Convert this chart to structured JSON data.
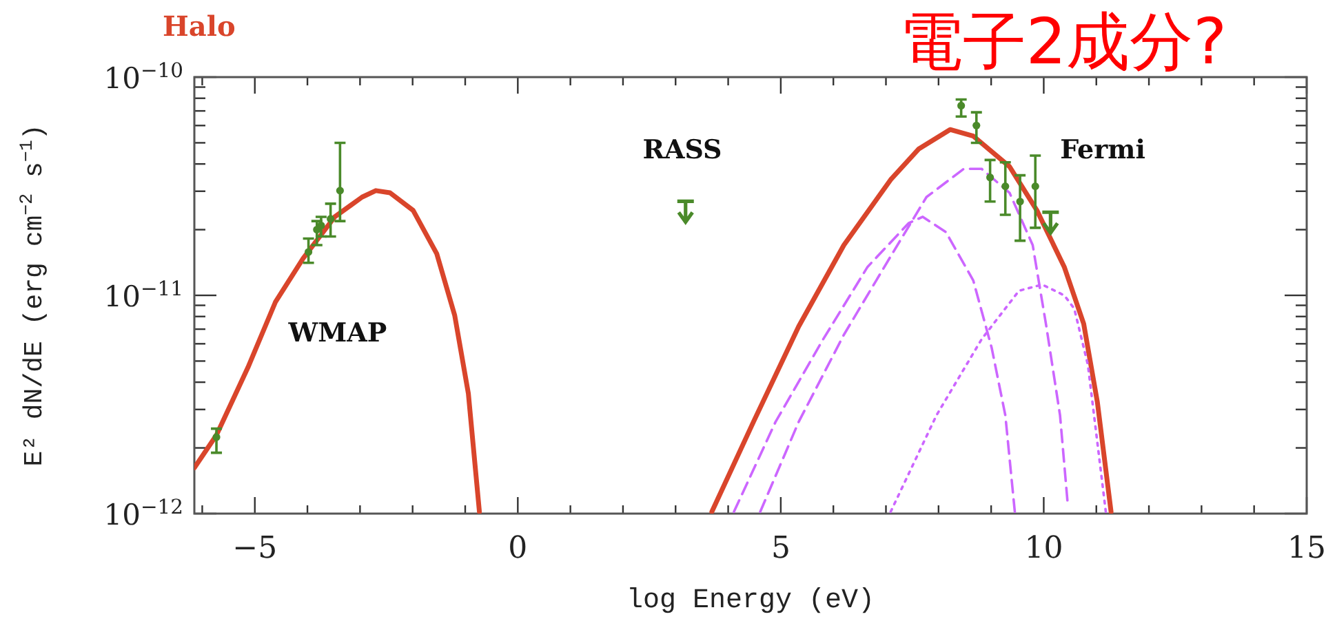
{
  "chart_data": {
    "type": "line",
    "title": "Halo",
    "xlabel": "log Energy (eV)",
    "ylabel": "E² dN/dE (erg cm$^{−2}$ s$^{−1}$)",
    "log": "y",
    "grid": false,
    "xlim": [
      -6.15,
      15
    ],
    "xticks": [
      -5,
      0,
      5,
      10,
      15
    ],
    "ylim": [
      1e-12,
      1e-10
    ],
    "yticks": [
      {
        "value": 1e-12,
        "label": "10$^{−12}$"
      },
      {
        "value": 1e-11,
        "label": "10$^{−11}$"
      },
      {
        "value": 1e-10,
        "label": "10$^{−10}$"
      }
    ],
    "series": [
      {
        "color": "#d9452b",
        "line_style": "solid",
        "x": [
          -6.15,
          -5.73,
          -5.13,
          -4.61,
          -4.08,
          -3.48,
          -2.96,
          -2.7,
          -2.43,
          -1.99,
          -1.54,
          -1.2,
          -0.94,
          -0.73
        ],
        "values": [
          1.62e-12,
          2.29e-12,
          4.68e-12,
          9.3e-12,
          1.48e-11,
          2.29e-11,
          2.82e-11,
          3.02e-11,
          2.95e-11,
          2.45e-11,
          1.55e-11,
          8.1e-12,
          3.55e-12,
          1.02e-12
        ]
      },
      {
        "color": "#d9452b",
        "line_style": "solid",
        "x": [
          3.69,
          4.48,
          5.34,
          6.2,
          7.09,
          7.62,
          8.22,
          8.66,
          9.35,
          9.87,
          10.39,
          10.76,
          11.02,
          11.28
        ],
        "values": [
          1.02e-12,
          2.63e-12,
          7.2e-12,
          1.7e-11,
          3.39e-11,
          4.68e-11,
          5.75e-11,
          5.37e-11,
          3.89e-11,
          2.45e-11,
          1.35e-11,
          7.4e-12,
          3.24e-12,
          1.02e-12
        ]
      },
      {
        "color": "#cc66ff",
        "line_style": "dashed",
        "x": [
          4.11,
          4.9,
          5.79,
          6.65,
          7.43,
          7.7,
          8.14,
          8.66,
          9.01,
          9.27,
          9.45
        ],
        "values": [
          1.02e-12,
          2.63e-12,
          6.2e-12,
          1.35e-11,
          2.14e-11,
          2.29e-11,
          1.95e-11,
          1.17e-11,
          5.75e-12,
          2.82e-12,
          1.02e-12
        ]
      },
      {
        "color": "#cc66ff",
        "line_style": "dashed",
        "x": [
          4.61,
          5.34,
          6.2,
          7.09,
          7.77,
          8.48,
          8.82,
          9.35,
          9.79,
          10.05,
          10.31,
          10.45
        ],
        "values": [
          1.02e-12,
          2.63e-12,
          6.6e-12,
          1.51e-11,
          2.82e-11,
          3.8e-11,
          3.8e-11,
          2.95e-11,
          1.7e-11,
          7.2e-12,
          2.82e-12,
          1.15e-12
        ]
      },
      {
        "color": "#cc66ff",
        "line_style": "dotted",
        "x": [
          7.09,
          7.96,
          8.82,
          9.53,
          9.97,
          10.39,
          10.58,
          10.84,
          11.18
        ],
        "values": [
          1.02e-12,
          2.82e-12,
          6.3e-12,
          1.05e-11,
          1.12e-11,
          1e-11,
          8.7e-12,
          4.8e-12,
          1.02e-12
        ]
      },
      {
        "type": "scatter",
        "color": "#4a8a2a",
        "marker": "circle",
        "x": [
          -5.73,
          -3.98,
          -3.82,
          -3.74,
          -3.56,
          -3.38,
          8.43,
          8.72,
          8.98,
          9.27,
          9.55,
          9.84
        ],
        "values": [
          2.24e-12,
          1.58e-11,
          2e-11,
          2.09e-11,
          2.24e-11,
          3.02e-11,
          7.4e-11,
          6e-11,
          3.47e-11,
          3.16e-11,
          2.69e-11,
          3.16e-11
        ],
        "errors": [
          [
            1.9e-12,
            2.45e-12
          ],
          [
            1.41e-11,
            1.82e-11
          ],
          [
            1.7e-11,
            2.19e-11
          ],
          [
            1.86e-11,
            2.29e-11
          ],
          [
            1.86e-11,
            2.63e-11
          ],
          [
            2.19e-11,
            5e-11
          ],
          [
            6.6e-11,
            7.9e-11
          ],
          [
            5e-11,
            6.9e-11
          ],
          [
            2.69e-11,
            4.17e-11
          ],
          [
            2.34e-11,
            4.07e-11
          ],
          [
            1.78e-11,
            3.55e-11
          ],
          [
            2.04e-11,
            4.37e-11
          ]
        ]
      },
      {
        "type": "scatter",
        "color": "#4a8a2a",
        "x": [
          3.19,
          10.13
        ],
        "values": [
          2.4e-11,
          2.14e-11
        ]
      }
    ],
    "annotations": [
      "WMAP",
      "RASS",
      "Fermi",
      "電子2成分?"
    ]
  }
}
